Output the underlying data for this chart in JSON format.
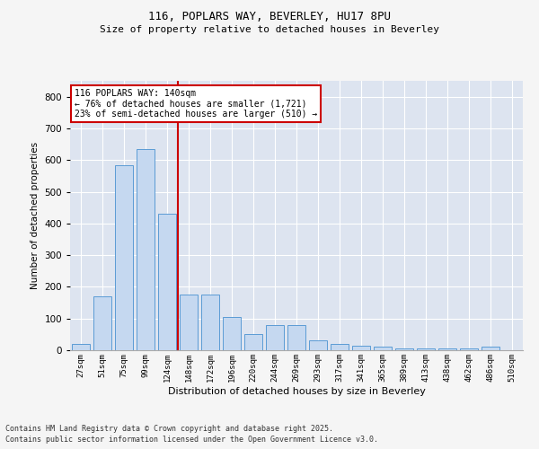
{
  "title1": "116, POPLARS WAY, BEVERLEY, HU17 8PU",
  "title2": "Size of property relative to detached houses in Beverley",
  "xlabel": "Distribution of detached houses by size in Beverley",
  "ylabel": "Number of detached properties",
  "categories": [
    "27sqm",
    "51sqm",
    "75sqm",
    "99sqm",
    "124sqm",
    "148sqm",
    "172sqm",
    "196sqm",
    "220sqm",
    "244sqm",
    "269sqm",
    "293sqm",
    "317sqm",
    "341sqm",
    "365sqm",
    "389sqm",
    "413sqm",
    "438sqm",
    "462sqm",
    "486sqm",
    "510sqm"
  ],
  "bar_values": [
    20,
    170,
    585,
    635,
    430,
    175,
    175,
    105,
    50,
    80,
    80,
    30,
    20,
    15,
    10,
    5,
    5,
    5,
    5,
    10,
    0
  ],
  "bar_color": "#c5d8f0",
  "bar_edge_color": "#5b9bd5",
  "vline_index": 5,
  "vline_color": "#cc0000",
  "ylim": [
    0,
    850
  ],
  "yticks": [
    0,
    100,
    200,
    300,
    400,
    500,
    600,
    700,
    800
  ],
  "annotation_text": "116 POPLARS WAY: 140sqm\n← 76% of detached houses are smaller (1,721)\n23% of semi-detached houses are larger (510) →",
  "annotation_box_color": "#cc0000",
  "plot_bg_color": "#dde4f0",
  "fig_bg_color": "#f5f5f5",
  "grid_color": "#ffffff",
  "footnote1": "Contains HM Land Registry data © Crown copyright and database right 2025.",
  "footnote2": "Contains public sector information licensed under the Open Government Licence v3.0."
}
